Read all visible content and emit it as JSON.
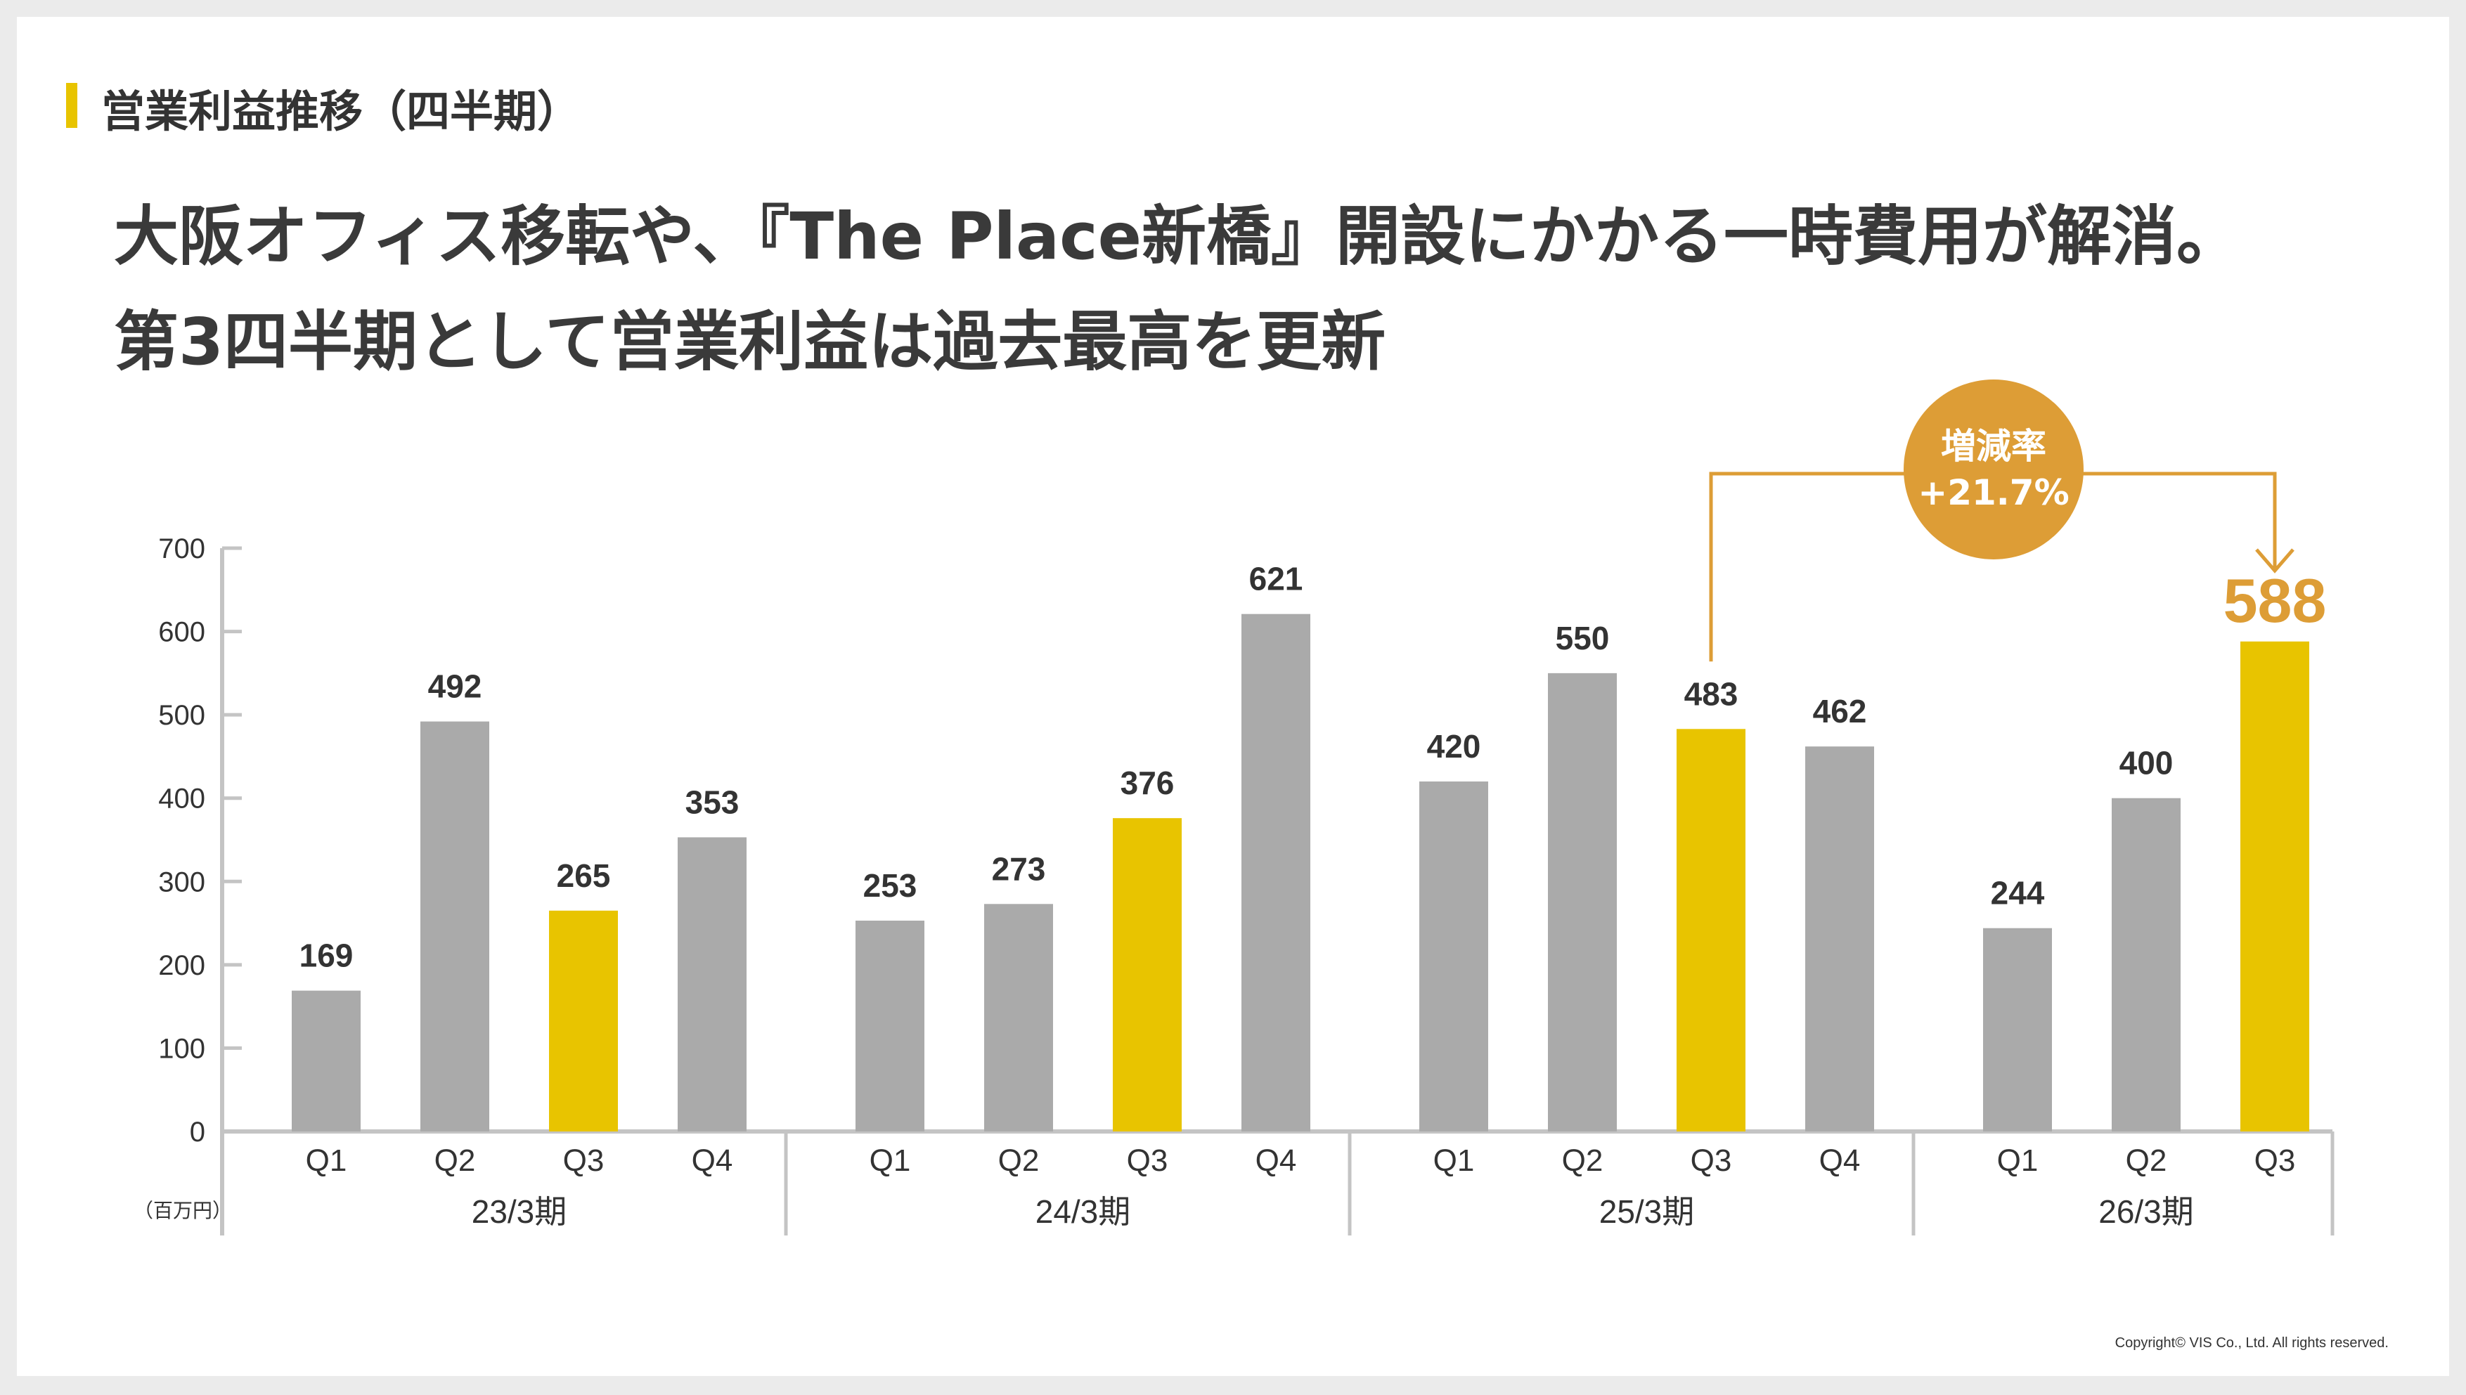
{
  "section_title": "営業利益推移（四半期）",
  "headline": {
    "line1": "大阪オフィス移転や、『The Place新橋』開設にかかる一時費用が解消。",
    "line2": "第3四半期として営業利益は過去最高を更新"
  },
  "badge": {
    "label": "増減率",
    "value": "+21.7%"
  },
  "copyright": "Copyright© VIS Co., Ltd. All rights reserved.",
  "colors": {
    "bar": "#aaaaaa",
    "highlight": "#e8c400",
    "accent": "#dd9d36",
    "axis": "#c4c4c4",
    "text": "#333333"
  },
  "chart_data": {
    "type": "bar",
    "unit": "（百万円）",
    "ylim": [
      0,
      700
    ],
    "yticks": [
      0,
      100,
      200,
      300,
      400,
      500,
      600,
      700
    ],
    "groups": [
      {
        "label": "23/3期",
        "bars": [
          {
            "q": "Q1",
            "value": 169
          },
          {
            "q": "Q2",
            "value": 492
          },
          {
            "q": "Q3",
            "value": 265,
            "highlight": true
          },
          {
            "q": "Q4",
            "value": 353
          }
        ]
      },
      {
        "label": "24/3期",
        "bars": [
          {
            "q": "Q1",
            "value": 253
          },
          {
            "q": "Q2",
            "value": 273
          },
          {
            "q": "Q3",
            "value": 376,
            "highlight": true
          },
          {
            "q": "Q4",
            "value": 621
          }
        ]
      },
      {
        "label": "25/3期",
        "bars": [
          {
            "q": "Q1",
            "value": 420
          },
          {
            "q": "Q2",
            "value": 550
          },
          {
            "q": "Q3",
            "value": 483,
            "highlight": true
          },
          {
            "q": "Q4",
            "value": 462
          }
        ]
      },
      {
        "label": "26/3期",
        "bars": [
          {
            "q": "Q1",
            "value": 244
          },
          {
            "q": "Q2",
            "value": 400
          },
          {
            "q": "Q3",
            "value": 588,
            "highlight": true
          }
        ]
      }
    ]
  }
}
